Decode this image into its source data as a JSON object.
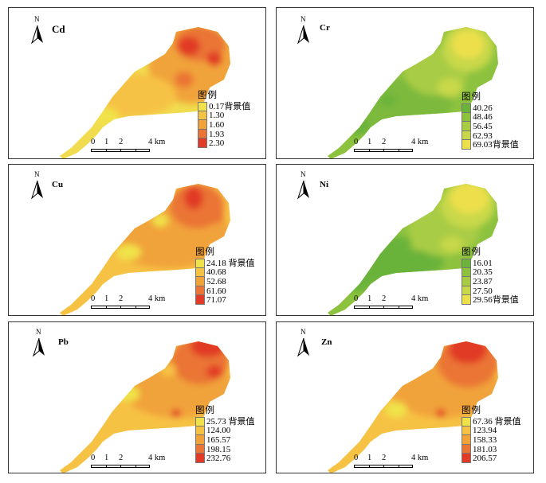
{
  "figure": {
    "panels": [
      {
        "id": "cd",
        "element": "Cd",
        "legend": {
          "title": "图例",
          "entries": [
            "0.17背景值",
            "1.30",
            "1.60",
            "1.93",
            "2.30"
          ],
          "colors": [
            "#f0e24a",
            "#f6c244",
            "#f1a33a",
            "#ea7534",
            "#e13a26"
          ]
        },
        "scale": {
          "ticks": [
            "0",
            "1",
            "2",
            "4 km"
          ]
        },
        "north": "N"
      },
      {
        "id": "cr",
        "element": "Cr",
        "legend": {
          "title": "图例",
          "entries": [
            "40.26",
            "48.46",
            "56.45",
            "62.93",
            "69.03背景值"
          ],
          "colors": [
            "#6bb33b",
            "#8dc23f",
            "#a8cc44",
            "#c8d84a",
            "#ecdf4c"
          ]
        },
        "scale": {
          "ticks": [
            "0",
            "1",
            "2",
            "4 km"
          ]
        },
        "north": "N"
      },
      {
        "id": "cu",
        "element": "Cu",
        "legend": {
          "title": "图例",
          "entries": [
            "24.18  背景值",
            "40.68",
            "52.68",
            "61.60",
            "71.07"
          ],
          "colors": [
            "#f0e24a",
            "#f6c244",
            "#f1a33a",
            "#ea7534",
            "#e13a26"
          ]
        },
        "scale": {
          "ticks": [
            "0",
            "1",
            "2",
            "4 km"
          ]
        },
        "north": "N"
      },
      {
        "id": "ni",
        "element": "Ni",
        "legend": {
          "title": "图例",
          "entries": [
            "16.01",
            "20.35",
            "23.87",
            "27.50",
            "29.56背景值"
          ],
          "colors": [
            "#6bb33b",
            "#8dc23f",
            "#a8cc44",
            "#c8d84a",
            "#ecdf4c"
          ]
        },
        "scale": {
          "ticks": [
            "0",
            "1",
            "2",
            "4 km"
          ]
        },
        "north": "N"
      },
      {
        "id": "pb",
        "element": "Pb",
        "legend": {
          "title": "图例",
          "entries": [
            "25.73  背景值",
            "124.00",
            "165.57",
            "198.15",
            "232.76"
          ],
          "colors": [
            "#f0e24a",
            "#f6c244",
            "#f1a33a",
            "#ea7534",
            "#e13a26"
          ]
        },
        "scale": {
          "ticks": [
            "0",
            "1",
            "2",
            "4 km"
          ]
        },
        "north": "N"
      },
      {
        "id": "zn",
        "element": "Zn",
        "legend": {
          "title": "图例",
          "entries": [
            "67.36 背景值",
            "123.94",
            "158.33",
            "181.03",
            "206.57"
          ],
          "colors": [
            "#f0e24a",
            "#f6c244",
            "#f1a33a",
            "#ea7534",
            "#e13a26"
          ]
        },
        "scale": {
          "ticks": [
            "0",
            "1",
            "2",
            "4 km"
          ]
        },
        "north": "N"
      }
    ]
  }
}
